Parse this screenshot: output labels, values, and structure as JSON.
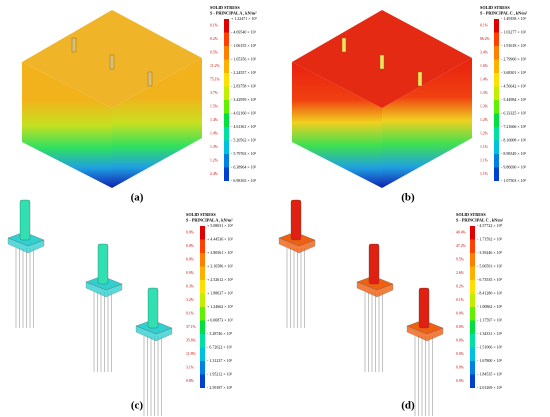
{
  "panels": [
    {
      "label": "(a)",
      "legend": {
        "title": "SOLID STRESS",
        "subtitle": "S - PRINCIPAL A , kN/m²",
        "values": [
          "+ 1.22471 × 10¹",
          "- 4.69540 × 10¹",
          "- 1.06155 × 10²",
          "- 1.65356 × 10²",
          "- 2.24557 × 10²",
          "- 2.83758 × 10²",
          "- 3.42959 × 10²",
          "- 4.02160 × 10²",
          "- 4.61361 × 10²",
          "- 5.20562 × 10²",
          "- 5.79763 × 10²",
          "- 6.38964 × 10²",
          "- 6.98165 × 10²"
        ],
        "percentages": [
          "0.1%",
          "0.2%",
          "0.5%",
          "11.2%",
          "75.1%",
          "3.7%",
          "1.5%",
          "1.4%",
          "1.4%",
          "1.3%",
          "1.2%",
          "2.4%"
        ]
      }
    },
    {
      "label": "(b)",
      "legend": {
        "title": "SOLID STRESS",
        "subtitle": "S - PRINCIPAL C , kN/m²",
        "values": [
          "- 1.49358 × 10¹",
          "- 1.03277 × 10²",
          "- 1.91618 × 10²",
          "- 2.79960 × 10²",
          "- 3.68301 × 10²",
          "- 4.56642 × 10²",
          "- 5.44984 × 10²",
          "- 6.33325 × 10²",
          "- 7.21666 × 10²",
          "- 8.10008 × 10²",
          "- 8.98349 × 10²",
          "- 9.86690 × 10²",
          "- 1.07503 × 10³"
        ],
        "percentages": [
          "0.1%",
          "86.2%",
          "3.4%",
          "1.6%",
          "1.4%",
          "1.3%",
          "1.3%",
          "1.2%",
          "1.2%",
          "1.1%",
          "1.1%",
          "1.1%"
        ]
      }
    },
    {
      "label": "(c)",
      "legend": {
        "title": "SOLID STRESS",
        "subtitle": "S - PRINCIPAL A , kN/m²",
        "values": [
          "+ 5.08031 × 10²",
          "+ 4.44536 × 10²",
          "+ 3.80561 × 10²",
          "+ 3.16586 × 10²",
          "+ 2.52612 × 10²",
          "+ 1.88637 × 10²",
          "+ 1.24662 × 10²",
          "+ 6.06873 × 10¹",
          "- 3.28746 × 10⁰",
          "- 6.72622 × 10¹",
          "- 1.31237 × 10²",
          "- 1.95212 × 10²",
          "- 2.59187 × 10²"
        ],
        "percentages": [
          "0.0%",
          "0.0%",
          "0.0%",
          "0.0%",
          "0.3%",
          "3.2%",
          "9.1%",
          "37.1%",
          "35.6%",
          "11.8%",
          "3.1%",
          "0.8%"
        ]
      }
    },
    {
      "label": "(d)",
      "legend": {
        "title": "SOLID STRESS",
        "subtitle": "S - PRINCIPAL C , kN/m²",
        "values": [
          "- 4.57722 × 10⁰",
          "- 1.71592 × 10²",
          "- 3.39246 × 10²",
          "- 5.06591 × 10²",
          "- 6.73535 × 10²",
          "- 8.41280 × 10²",
          "- 1.00862 × 10³",
          "- 1.17597 × 10³",
          "- 1.34331 × 10³",
          "- 1.51066 × 10³",
          "- 1.67800 × 10³",
          "- 1.84535 × 10³",
          "- 2.01269 × 10³"
        ],
        "percentages": [
          "40.4%",
          "47.2%",
          "9.5%",
          "2.6%",
          "0.2%",
          "0.1%",
          "0.0%",
          "0.0%",
          "0.0%",
          "0.0%",
          "0.0%",
          "0.0%"
        ]
      }
    }
  ]
}
